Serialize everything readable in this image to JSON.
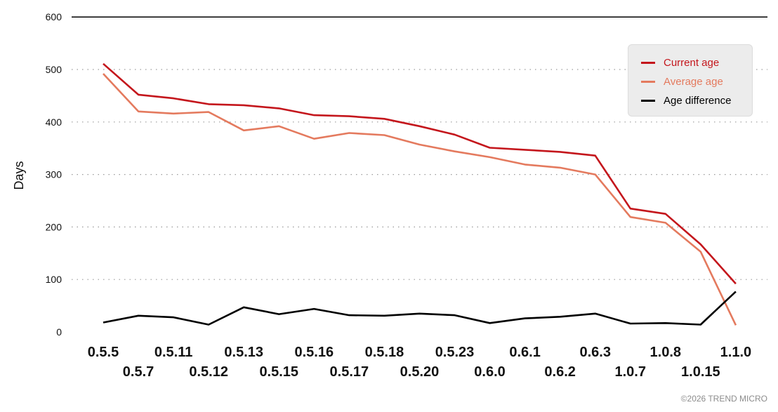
{
  "chart_data": {
    "type": "line",
    "ylabel": "Days",
    "ylim": [
      0,
      600
    ],
    "yticks": [
      0,
      100,
      200,
      300,
      400,
      500,
      600
    ],
    "grid": "dotted horizontal",
    "legend_position": "top-right",
    "categories": [
      "0.5.5",
      "0.5.7",
      "0.5.11",
      "0.5.12",
      "0.5.13",
      "0.5.15",
      "0.5.16",
      "0.5.17",
      "0.5.18",
      "0.5.20",
      "0.5.23",
      "0.6.0",
      "0.6.1",
      "0.6.2",
      "0.6.3",
      "1.0.7",
      "1.0.8",
      "1.0.15",
      "1.1.0"
    ],
    "series": [
      {
        "name": "Current age",
        "color": "#c4161c",
        "values": [
          511,
          452,
          445,
          434,
          432,
          426,
          413,
          411,
          406,
          392,
          376,
          351,
          347,
          343,
          336,
          235,
          225,
          167,
          92
        ]
      },
      {
        "name": "Average age",
        "color": "#e47a5e",
        "values": [
          492,
          420,
          416,
          419,
          384,
          392,
          368,
          379,
          375,
          357,
          344,
          333,
          319,
          313,
          300,
          219,
          208,
          153,
          13
        ]
      },
      {
        "name": "Age difference",
        "color": "#000000",
        "values": [
          18,
          31,
          28,
          14,
          47,
          34,
          44,
          32,
          31,
          35,
          32,
          17,
          26,
          29,
          35,
          16,
          17,
          14,
          77
        ]
      }
    ]
  },
  "credit": "©2026 TREND MICRO"
}
